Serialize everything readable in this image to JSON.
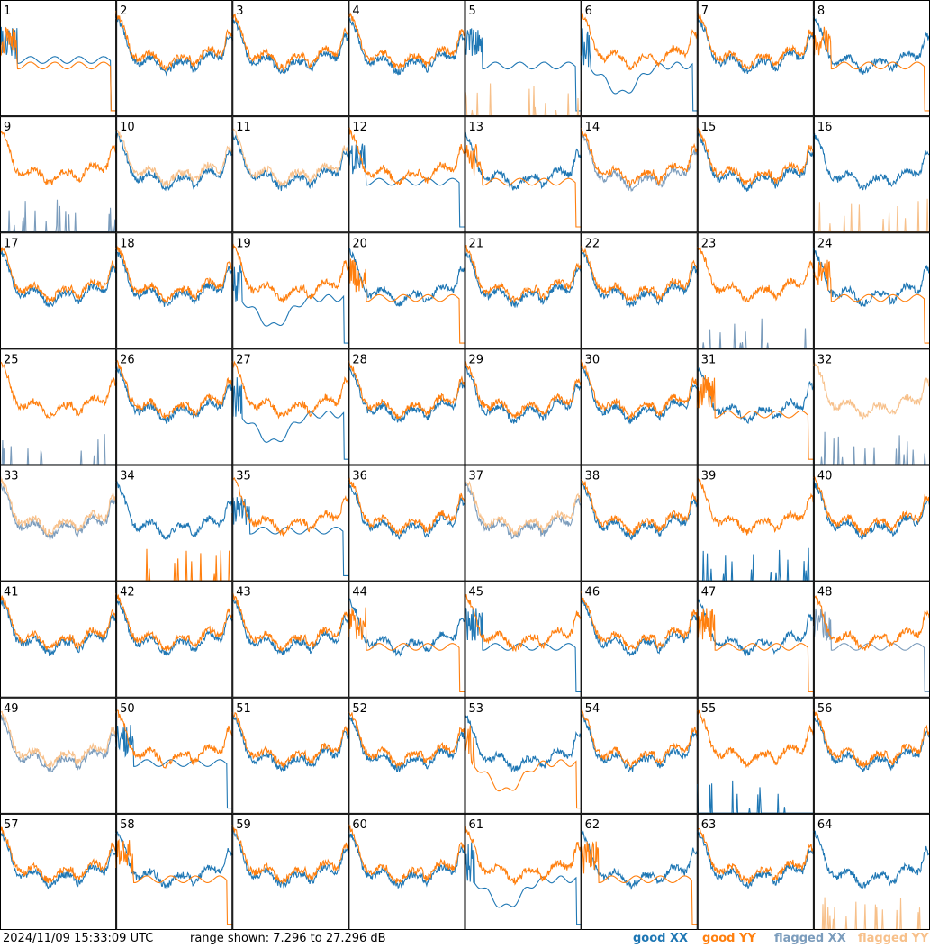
{
  "footer": {
    "timestamp": "2024/11/09 15:33:09 UTC",
    "range_text": "range shown: 7.296 to 27.296 dB",
    "legend": {
      "good_xx": "good XX",
      "good_yy": "good YY",
      "flagged_xx": "flagged XX",
      "flagged_yy": "flagged YY"
    }
  },
  "colors": {
    "good_xx": "#1f77b4",
    "good_yy": "#ff7f0e",
    "flagged_xx": "#7b9cbc",
    "flagged_yy": "#f7c08a",
    "frame": "#000000"
  },
  "chart_data": {
    "type": "line",
    "grid": "8x8 small multiples",
    "ylim_db": [
      7.296,
      27.296
    ],
    "series_names": [
      "good XX",
      "good YY",
      "flagged XX",
      "flagged YY"
    ],
    "panels": [
      {
        "label": "1",
        "xx": "good",
        "yy": "good",
        "xx_shape": "drop",
        "yy_shape": "drop",
        "xx_level": 0.5,
        "yy_level": 0.45
      },
      {
        "label": "2",
        "xx": "good",
        "yy": "good"
      },
      {
        "label": "3",
        "xx": "good",
        "yy": "good"
      },
      {
        "label": "4",
        "xx": "good",
        "yy": "good"
      },
      {
        "label": "5",
        "xx": "good",
        "yy": "good",
        "xx_shape": "drop",
        "yy_shape": "low",
        "yy_color": "flagged_yy"
      },
      {
        "label": "6",
        "xx": "good",
        "yy": "good",
        "xx_shape": "dip",
        "yy_shape": "normal"
      },
      {
        "label": "7",
        "xx": "good",
        "yy": "good"
      },
      {
        "label": "8",
        "xx": "good",
        "yy": "good",
        "yy_shape": "drop"
      },
      {
        "label": "9",
        "xx": "flagged",
        "yy": "good",
        "xx_shape": "low"
      },
      {
        "label": "10",
        "xx": "good",
        "yy": "flagged"
      },
      {
        "label": "11",
        "xx": "good",
        "yy": "flagged"
      },
      {
        "label": "12",
        "xx": "good",
        "yy": "good",
        "xx_shape": "drop"
      },
      {
        "label": "13",
        "xx": "good",
        "yy": "good",
        "yy_shape": "drop"
      },
      {
        "label": "14",
        "xx": "flagged",
        "yy": "good"
      },
      {
        "label": "15",
        "xx": "good",
        "yy": "good"
      },
      {
        "label": "16",
        "xx": "good",
        "yy": "flagged",
        "yy_shape": "low"
      },
      {
        "label": "17",
        "xx": "good",
        "yy": "good"
      },
      {
        "label": "18",
        "xx": "good",
        "yy": "good"
      },
      {
        "label": "19",
        "xx": "good",
        "yy": "good",
        "xx_shape": "dip"
      },
      {
        "label": "20",
        "xx": "good",
        "yy": "good",
        "yy_shape": "drop"
      },
      {
        "label": "21",
        "xx": "good",
        "yy": "good"
      },
      {
        "label": "22",
        "xx": "good",
        "yy": "good"
      },
      {
        "label": "23",
        "xx": "flagged",
        "yy": "good",
        "xx_shape": "low"
      },
      {
        "label": "24",
        "xx": "good",
        "yy": "good",
        "yy_shape": "drop"
      },
      {
        "label": "25",
        "xx": "flagged",
        "yy": "good",
        "xx_shape": "low"
      },
      {
        "label": "26",
        "xx": "good",
        "yy": "good"
      },
      {
        "label": "27",
        "xx": "good",
        "yy": "good",
        "xx_shape": "dip"
      },
      {
        "label": "28",
        "xx": "good",
        "yy": "good"
      },
      {
        "label": "29",
        "xx": "good",
        "yy": "good"
      },
      {
        "label": "30",
        "xx": "good",
        "yy": "good"
      },
      {
        "label": "31",
        "xx": "good",
        "yy": "good",
        "yy_shape": "drop"
      },
      {
        "label": "32",
        "xx": "flagged",
        "yy": "flagged",
        "xx_shape": "low"
      },
      {
        "label": "33",
        "xx": "flagged",
        "yy": "flagged"
      },
      {
        "label": "34",
        "xx": "good",
        "yy": "good",
        "yy_shape": "low"
      },
      {
        "label": "35",
        "xx": "good",
        "yy": "good",
        "xx_shape": "drop"
      },
      {
        "label": "36",
        "xx": "good",
        "yy": "good"
      },
      {
        "label": "37",
        "xx": "flagged",
        "yy": "flagged"
      },
      {
        "label": "38",
        "xx": "good",
        "yy": "good"
      },
      {
        "label": "39",
        "xx": "good",
        "yy": "good",
        "xx_shape": "low"
      },
      {
        "label": "40",
        "xx": "good",
        "yy": "good"
      },
      {
        "label": "41",
        "xx": "good",
        "yy": "good"
      },
      {
        "label": "42",
        "xx": "good",
        "yy": "good"
      },
      {
        "label": "43",
        "xx": "good",
        "yy": "good"
      },
      {
        "label": "44",
        "xx": "good",
        "yy": "good",
        "yy_shape": "drop"
      },
      {
        "label": "45",
        "xx": "good",
        "yy": "good",
        "xx_shape": "drop"
      },
      {
        "label": "46",
        "xx": "good",
        "yy": "good"
      },
      {
        "label": "47",
        "xx": "good",
        "yy": "good",
        "yy_shape": "drop"
      },
      {
        "label": "48",
        "xx": "flagged",
        "yy": "good",
        "xx_shape": "drop"
      },
      {
        "label": "49",
        "xx": "flagged",
        "yy": "flagged"
      },
      {
        "label": "50",
        "xx": "good",
        "yy": "good",
        "xx_shape": "drop"
      },
      {
        "label": "51",
        "xx": "good",
        "yy": "good"
      },
      {
        "label": "52",
        "xx": "good",
        "yy": "good"
      },
      {
        "label": "53",
        "xx": "good",
        "yy": "good",
        "yy_shape": "dip"
      },
      {
        "label": "54",
        "xx": "good",
        "yy": "good"
      },
      {
        "label": "55",
        "xx": "good",
        "yy": "good",
        "xx_shape": "low"
      },
      {
        "label": "56",
        "xx": "good",
        "yy": "good"
      },
      {
        "label": "57",
        "xx": "good",
        "yy": "good"
      },
      {
        "label": "58",
        "xx": "good",
        "yy": "good",
        "yy_shape": "drop"
      },
      {
        "label": "59",
        "xx": "good",
        "yy": "good"
      },
      {
        "label": "60",
        "xx": "good",
        "yy": "good"
      },
      {
        "label": "61",
        "xx": "good",
        "yy": "good",
        "xx_shape": "dip"
      },
      {
        "label": "62",
        "xx": "good",
        "yy": "good",
        "yy_shape": "drop"
      },
      {
        "label": "63",
        "xx": "good",
        "yy": "good"
      },
      {
        "label": "64",
        "xx": "good",
        "yy": "flagged",
        "yy_shape": "low"
      }
    ]
  }
}
